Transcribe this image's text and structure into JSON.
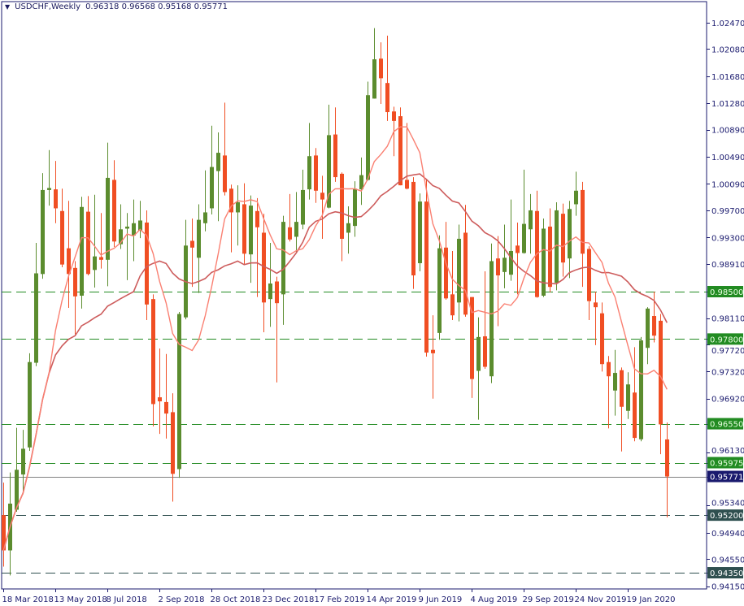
{
  "header": {
    "symbol": "USDCHF,Weekly",
    "ohlc": "0.96318 0.96568 0.95168 0.95771",
    "menu_icon": "triangle-down-icon"
  },
  "colors": {
    "bull": "#5b8c2e",
    "bear": "#f04e23",
    "fast_ma": "#fa8072",
    "slow_ma": "#cd5c5c",
    "axis": "#1a1a6e",
    "level_green": "#228b22",
    "level_dark": "#2f4f4f",
    "current_price": "#1a1a6e"
  },
  "chart_data": {
    "type": "candlestick",
    "title": "USDCHF,Weekly",
    "ylim": [
      0.9415,
      1.0247
    ],
    "grid": false,
    "y_ticks": [
      "1.02470",
      "1.02080",
      "1.01680",
      "1.01280",
      "1.00890",
      "1.00490",
      "1.00090",
      "0.99700",
      "0.99300",
      "0.98910",
      "0.98110",
      "0.97720",
      "0.97320",
      "0.96920",
      "0.96130",
      "0.95340",
      "0.94940",
      "0.94550",
      "0.94150"
    ],
    "x_ticks": [
      {
        "label": "18 Mar 2018",
        "date": "2018-03-18"
      },
      {
        "label": "13 May 2018",
        "date": "2018-05-13"
      },
      {
        "label": "8 Jul 2018",
        "date": "2018-07-08"
      },
      {
        "label": "2 Sep 2018",
        "date": "2018-09-02"
      },
      {
        "label": "28 Oct 2018",
        "date": "2018-10-28"
      },
      {
        "label": "23 Dec 2018",
        "date": "2018-12-23"
      },
      {
        "label": "17 Feb 2019",
        "date": "2019-02-17"
      },
      {
        "label": "14 Apr 2019",
        "date": "2019-04-14"
      },
      {
        "label": "9 Jun 2019",
        "date": "2019-06-09"
      },
      {
        "label": "4 Aug 2019",
        "date": "2019-08-04"
      },
      {
        "label": "29 Sep 2019",
        "date": "2019-09-29"
      },
      {
        "label": "24 Nov 2019",
        "date": "2019-11-24"
      },
      {
        "label": "19 Jan 2020",
        "date": "2020-01-19"
      }
    ],
    "levels": [
      {
        "price": 0.985,
        "label": "0.98500",
        "style": "green"
      },
      {
        "price": 0.978,
        "label": "0.97800",
        "style": "green"
      },
      {
        "price": 0.9655,
        "label": "0.96550",
        "style": "green"
      },
      {
        "price": 0.95975,
        "label": "0.95975",
        "style": "green"
      },
      {
        "price": 0.952,
        "label": "0.95200",
        "style": "dark"
      },
      {
        "price": 0.9435,
        "label": "0.94350",
        "style": "dark"
      }
    ],
    "current_price": {
      "price": 0.95771,
      "label": "0.95771"
    },
    "candles_columns": [
      "date",
      "open",
      "high",
      "low",
      "close"
    ],
    "candles": [
      [
        "2018-03-18",
        0.952,
        0.9568,
        0.9444,
        0.9468
      ],
      [
        "2018-03-25",
        0.9468,
        0.9583,
        0.9431,
        0.9537
      ],
      [
        "2018-04-01",
        0.9528,
        0.9649,
        0.9525,
        0.9587
      ],
      [
        "2018-04-08",
        0.958,
        0.9646,
        0.9551,
        0.9618
      ],
      [
        "2018-04-15",
        0.962,
        0.9759,
        0.9615,
        0.9746
      ],
      [
        "2018-04-22",
        0.9745,
        0.9922,
        0.974,
        0.9877
      ],
      [
        "2018-04-29",
        0.9876,
        1.0025,
        0.9869,
        1.0
      ],
      [
        "2018-05-06",
        1.0,
        1.0059,
        0.9977,
        1.0003
      ],
      [
        "2018-05-13",
        1.0001,
        1.0043,
        0.9951,
        0.9973
      ],
      [
        "2018-05-20",
        0.9969,
        1.0002,
        0.9886,
        0.989
      ],
      [
        "2018-05-27",
        0.9914,
        0.9984,
        0.9826,
        0.9876
      ],
      [
        "2018-06-03",
        0.9885,
        0.9895,
        0.9787,
        0.9843
      ],
      [
        "2018-06-10",
        0.9844,
        0.999,
        0.9825,
        0.9975
      ],
      [
        "2018-06-17",
        0.9968,
        0.9991,
        0.9874,
        0.9876
      ],
      [
        "2018-06-24",
        0.9882,
        0.9993,
        0.9856,
        0.9902
      ],
      [
        "2018-07-01",
        0.9901,
        0.9966,
        0.9884,
        0.9897
      ],
      [
        "2018-07-08",
        0.9897,
        1.007,
        0.9858,
        1.0018
      ],
      [
        "2018-07-15",
        1.0015,
        1.0044,
        0.9916,
        0.9924
      ],
      [
        "2018-07-22",
        0.992,
        0.9979,
        0.9913,
        0.9942
      ],
      [
        "2018-07-29",
        0.9943,
        0.9966,
        0.9867,
        0.9946
      ],
      [
        "2018-08-05",
        0.9933,
        0.9986,
        0.9895,
        0.9951
      ],
      [
        "2018-08-12",
        0.994,
        0.9984,
        0.9929,
        0.9955
      ],
      [
        "2018-08-19",
        0.9952,
        0.997,
        0.9808,
        0.9831
      ],
      [
        "2018-08-26",
        0.9839,
        0.9846,
        0.9651,
        0.9684
      ],
      [
        "2018-09-02",
        0.9694,
        0.9766,
        0.964,
        0.9688
      ],
      [
        "2018-09-09",
        0.9687,
        0.9758,
        0.9633,
        0.967
      ],
      [
        "2018-09-16",
        0.9672,
        0.97,
        0.954,
        0.9581
      ],
      [
        "2018-09-23",
        0.9588,
        0.982,
        0.9575,
        0.9817
      ],
      [
        "2018-09-30",
        0.9812,
        0.9956,
        0.9809,
        0.9918
      ],
      [
        "2018-10-07",
        0.9925,
        0.9958,
        0.9857,
        0.9915
      ],
      [
        "2018-10-14",
        0.99,
        0.9979,
        0.9848,
        0.9956
      ],
      [
        "2018-10-21",
        0.9951,
        1.0029,
        0.9939,
        0.9967
      ],
      [
        "2018-10-28",
        0.9973,
        1.0095,
        0.9964,
        1.0034
      ],
      [
        "2018-11-04",
        1.0028,
        1.0085,
        0.9954,
        1.0055
      ],
      [
        "2018-11-11",
        1.0051,
        1.0129,
        0.9992,
        0.9997
      ],
      [
        "2018-11-18",
        1.0002,
        1.0008,
        0.9908,
        0.9967
      ],
      [
        "2018-11-25",
        0.9967,
        1.0007,
        0.9918,
        0.9982
      ],
      [
        "2018-12-02",
        0.9979,
        1.001,
        0.989,
        0.9906
      ],
      [
        "2018-12-09",
        0.9905,
        0.9992,
        0.9863,
        0.9977
      ],
      [
        "2018-12-16",
        0.9969,
        0.9988,
        0.9842,
        0.9945
      ],
      [
        "2018-12-23",
        0.9937,
        0.9965,
        0.979,
        0.9834
      ],
      [
        "2018-12-30",
        0.9839,
        0.9922,
        0.9798,
        0.9862
      ],
      [
        "2019-01-06",
        0.9865,
        0.9872,
        0.9716,
        0.9833
      ],
      [
        "2019-01-13",
        0.9846,
        0.9962,
        0.9801,
        0.9953
      ],
      [
        "2019-01-20",
        0.9945,
        0.9994,
        0.9924,
        0.9927
      ],
      [
        "2019-01-27",
        0.9931,
        0.9997,
        0.9907,
        0.9953
      ],
      [
        "2019-02-03",
        0.9949,
        1.003,
        0.9942,
        1.0
      ],
      [
        "2019-02-10",
        1.0001,
        1.0099,
        0.9986,
        1.005
      ],
      [
        "2019-02-17",
        1.0051,
        1.0062,
        0.9981,
        0.9999
      ],
      [
        "2019-02-24",
        0.9996,
        1.0021,
        0.9928,
        0.9986
      ],
      [
        "2019-03-03",
        0.9974,
        1.0126,
        0.9973,
        1.0081
      ],
      [
        "2019-03-10",
        1.0082,
        1.0122,
        1.0012,
        1.0019
      ],
      [
        "2019-03-17",
        1.0024,
        1.0026,
        0.9895,
        0.9928
      ],
      [
        "2019-03-24",
        0.9937,
        0.9976,
        0.9906,
        0.9951
      ],
      [
        "2019-03-31",
        0.9947,
        1.0013,
        0.9931,
        1.0002
      ],
      [
        "2019-04-07",
        1.0001,
        1.0048,
        0.9978,
        1.0022
      ],
      [
        "2019-04-14",
        1.0015,
        1.016,
        1.0014,
        1.014
      ],
      [
        "2019-04-21",
        1.0135,
        1.0239,
        1.0135,
        1.0193
      ],
      [
        "2019-04-28",
        1.0194,
        1.0218,
        1.0127,
        1.0165
      ],
      [
        "2019-05-05",
        1.0158,
        1.0228,
        1.0102,
        1.0115
      ],
      [
        "2019-05-12",
        1.0116,
        1.0123,
        1.005,
        1.0102
      ],
      [
        "2019-05-19",
        1.0109,
        1.0122,
        1.0007,
        1.0007
      ],
      [
        "2019-05-26",
        1.0015,
        1.0099,
        1.0001,
        1.0002
      ],
      [
        "2019-06-02",
        1.0012,
        1.0019,
        0.9854,
        0.9874
      ],
      [
        "2019-06-09",
        0.9892,
        0.9995,
        0.988,
        0.9983
      ],
      [
        "2019-06-16",
        0.9983,
        1.0016,
        0.9754,
        0.976
      ],
      [
        "2019-06-23",
        0.9764,
        0.9815,
        0.9692,
        0.9759
      ],
      [
        "2019-06-30",
        0.9789,
        0.9933,
        0.9779,
        0.9914
      ],
      [
        "2019-07-07",
        0.9915,
        0.9953,
        0.9838,
        0.984
      ],
      [
        "2019-07-14",
        0.9846,
        0.991,
        0.9808,
        0.9815
      ],
      [
        "2019-07-21",
        0.9834,
        0.9949,
        0.9806,
        0.9928
      ],
      [
        "2019-07-28",
        0.9937,
        0.9978,
        0.9813,
        0.9816
      ],
      [
        "2019-08-04",
        0.9842,
        0.9842,
        0.9693,
        0.9721
      ],
      [
        "2019-08-11",
        0.9733,
        0.9812,
        0.9661,
        0.9783
      ],
      [
        "2019-08-18",
        0.9784,
        0.988,
        0.9736,
        0.9739
      ],
      [
        "2019-08-25",
        0.9725,
        0.9921,
        0.9715,
        0.9895
      ],
      [
        "2019-09-01",
        0.9899,
        0.9932,
        0.9799,
        0.9874
      ],
      [
        "2019-09-08",
        0.9879,
        0.9949,
        0.9855,
        0.99
      ],
      [
        "2019-09-15",
        0.9875,
        0.9986,
        0.9866,
        0.991
      ],
      [
        "2019-09-22",
        0.9918,
        0.9952,
        0.9846,
        0.9907
      ],
      [
        "2019-09-29",
        0.9907,
        1.003,
        0.9906,
        0.995
      ],
      [
        "2019-10-06",
        0.9942,
        0.9994,
        0.9906,
        0.997
      ],
      [
        "2019-10-13",
        0.9969,
        0.9999,
        0.9841,
        0.9842
      ],
      [
        "2019-10-20",
        0.9844,
        0.9958,
        0.9842,
        0.9943
      ],
      [
        "2019-10-27",
        0.9946,
        0.9973,
        0.9849,
        0.9857
      ],
      [
        "2019-11-03",
        0.9863,
        0.9982,
        0.9852,
        0.997
      ],
      [
        "2019-11-10",
        0.9965,
        0.998,
        0.9872,
        0.9893
      ],
      [
        "2019-11-17",
        0.9899,
        0.9984,
        0.987,
        0.9972
      ],
      [
        "2019-11-24",
        0.9979,
        1.0027,
        0.9962,
        0.9999
      ],
      [
        "2019-12-01",
        1.0,
        1.0012,
        0.9857,
        0.9906
      ],
      [
        "2019-12-08",
        0.9913,
        0.9917,
        0.9808,
        0.9836
      ],
      [
        "2019-12-15",
        0.9834,
        0.985,
        0.9771,
        0.9827
      ],
      [
        "2019-12-22",
        0.9818,
        0.9834,
        0.9732,
        0.9743
      ],
      [
        "2019-12-29",
        0.9746,
        0.9755,
        0.9648,
        0.9725
      ],
      [
        "2020-01-05",
        0.9704,
        0.9764,
        0.9667,
        0.973
      ],
      [
        "2020-01-12",
        0.9734,
        0.9738,
        0.9614,
        0.968
      ],
      [
        "2020-01-19",
        0.9674,
        0.9731,
        0.9662,
        0.9713
      ],
      [
        "2020-01-26",
        0.9701,
        0.9768,
        0.9629,
        0.9634
      ],
      [
        "2020-02-02",
        0.9632,
        0.9783,
        0.9629,
        0.9778
      ],
      [
        "2020-02-09",
        0.9767,
        0.9827,
        0.9743,
        0.9825
      ],
      [
        "2020-02-16",
        0.9814,
        0.985,
        0.9775,
        0.9785
      ],
      [
        "2020-02-23",
        0.9807,
        0.9817,
        0.961,
        0.9654
      ],
      [
        "2020-03-01",
        0.96318,
        0.96568,
        0.95168,
        0.95771
      ]
    ]
  }
}
